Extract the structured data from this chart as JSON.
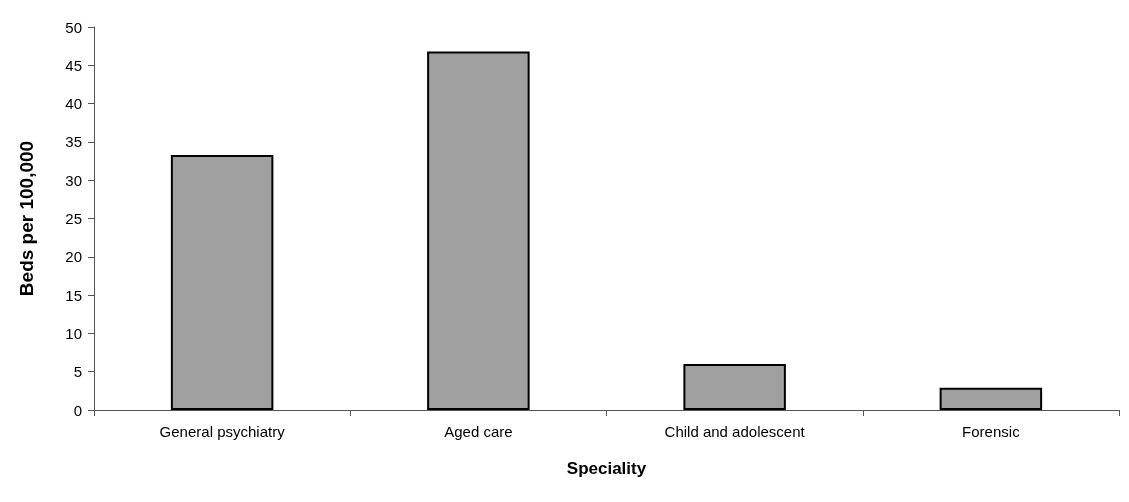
{
  "chart_data": {
    "type": "bar",
    "xlabel": "Speciality",
    "ylabel": "Beds per 100,000",
    "categories": [
      "General psychiatry",
      "Aged care",
      "Child and adolescent",
      "Forensic"
    ],
    "values": [
      33.3,
      46.8,
      6.0,
      2.9
    ],
    "color": "#a0a0a0",
    "ylim": [
      0,
      50
    ],
    "yticks": [
      0,
      5,
      10,
      15,
      20,
      25,
      30,
      35,
      40,
      45,
      50
    ],
    "grid": false
  }
}
